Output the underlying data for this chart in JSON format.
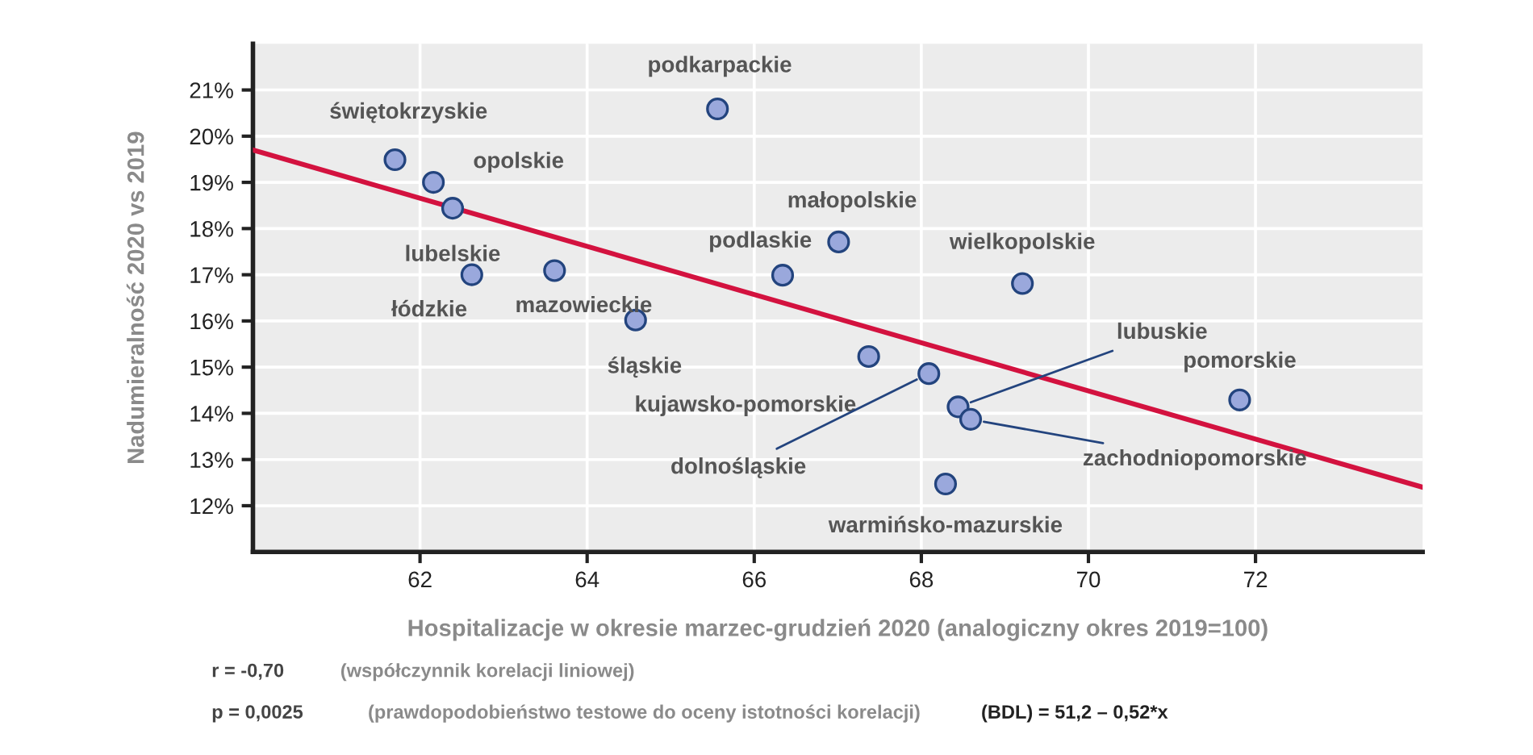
{
  "chart_data": {
    "type": "scatter",
    "xlabel": "Hospitalizacje w okresie marzec-grudzień 2020 (analogiczny okres 2019=100)",
    "ylabel": "Nadumieralność 2020 vs 2019",
    "xlim": [
      60,
      74
    ],
    "xticks": [
      62,
      64,
      66,
      68,
      70,
      72
    ],
    "ylim": [
      11,
      22
    ],
    "yticks": [
      {
        "value": 12,
        "label": "12%"
      },
      {
        "value": 13,
        "label": "13%"
      },
      {
        "value": 14,
        "label": "14%"
      },
      {
        "value": 15,
        "label": "15%"
      },
      {
        "value": 16,
        "label": "16%"
      },
      {
        "value": 17,
        "label": "17%"
      },
      {
        "value": 18,
        "label": "18%"
      },
      {
        "value": 19,
        "label": "19%"
      },
      {
        "value": 20,
        "label": "20%"
      },
      {
        "value": 21,
        "label": "21%"
      }
    ],
    "grid": true,
    "series": [
      {
        "type": "line",
        "color": "#d3123f",
        "x": [
          60,
          74
        ],
        "values": [
          19.7,
          12.4
        ]
      },
      {
        "marker": "circle",
        "color": "#9aa8dc",
        "x": [
          61.7,
          62.16,
          62.39,
          62.62,
          63.61,
          64.58,
          65.56,
          66.34,
          67.01,
          67.37,
          68.09,
          68.44,
          68.59,
          68.29,
          69.21,
          71.81
        ],
        "values": [
          19.49,
          19.0,
          18.44,
          17.0,
          17.09,
          16.02,
          20.59,
          16.99,
          17.71,
          15.23,
          14.86,
          14.14,
          13.87,
          12.47,
          16.81,
          14.29
        ]
      }
    ],
    "annotations": [
      {
        "text": "świętokrzyskie",
        "x": 61.7,
        "y": 19.49
      },
      {
        "text": "opolskie",
        "x": 62.16,
        "y": 19.0
      },
      {
        "text": "lubelskie",
        "x": 62.39,
        "y": 18.44
      },
      {
        "text": "łódzkie",
        "x": 62.62,
        "y": 17.0
      },
      {
        "text": "mazowieckie",
        "x": 63.61,
        "y": 17.09
      },
      {
        "text": "śląskie",
        "x": 64.58,
        "y": 16.02
      },
      {
        "text": "podkarpackie",
        "x": 65.56,
        "y": 20.59
      },
      {
        "text": "podlaskie",
        "x": 66.34,
        "y": 16.99
      },
      {
        "text": "małopolskie",
        "x": 67.01,
        "y": 17.71
      },
      {
        "text": "kujawsko-pomorskie",
        "x": 67.37,
        "y": 15.23
      },
      {
        "text": "dolnośląskie",
        "x": 68.09,
        "y": 14.86
      },
      {
        "text": "lubuskie",
        "x": 68.44,
        "y": 14.14
      },
      {
        "text": "zachodniopomorskie",
        "x": 68.59,
        "y": 13.87
      },
      {
        "text": "warmińsko-mazurskie",
        "x": 68.29,
        "y": 12.47
      },
      {
        "text": "wielkopolskie",
        "x": 69.21,
        "y": 16.81
      },
      {
        "text": "pomorskie",
        "x": 71.81,
        "y": 14.29
      },
      "r = -0,70",
      "(współczynnik korelacji liniowej)",
      "p = 0,0025",
      "(prawdopodobieństwo testowe do oceny istotności korelacji)",
      "(BDL) = 51,2 – 0,52*x"
    ]
  }
}
